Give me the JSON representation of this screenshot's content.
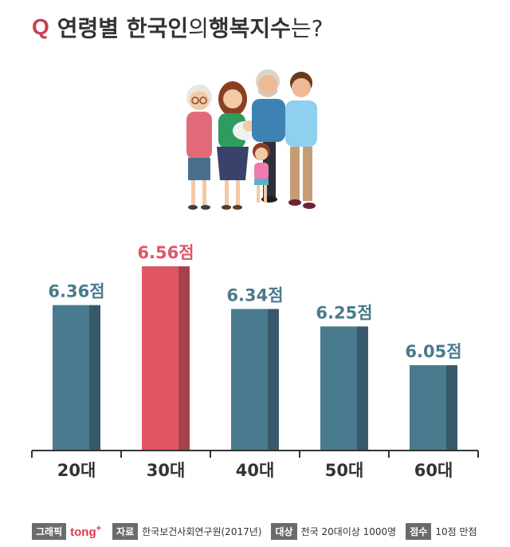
{
  "header": {
    "q": "Q",
    "title_bold_1": "연령별 한국인",
    "title_light": "의 ",
    "title_bold_2": "행복지수",
    "title_light_2": "는?"
  },
  "chart_data": {
    "type": "bar",
    "categories": [
      "20대",
      "30대",
      "40대",
      "50대",
      "60대"
    ],
    "values": [
      6.36,
      6.56,
      6.34,
      6.25,
      6.05
    ],
    "value_labels": [
      "6.36점",
      "6.56점",
      "6.34점",
      "6.25점",
      "6.05점"
    ],
    "highlight_index": 1,
    "colors": {
      "default": "#4a7a8e",
      "default_shade": "#38596a",
      "highlight": "#e15665",
      "highlight_shade": "#a8414d",
      "label_default": "#4a7a8e",
      "label_highlight": "#e15665",
      "axis": "#333333"
    },
    "title": "",
    "xlabel": "",
    "ylabel": ""
  },
  "footer": {
    "graphic_tag": "그래픽",
    "brand": "tong",
    "brand_sup": "+",
    "source_tag": "자료",
    "source": "한국보건사회연구원(2017년)",
    "target_tag": "대상",
    "target": "전국 20대이상 1000명",
    "score_tag": "점수",
    "score": "10점 만점"
  },
  "illustration": {
    "icon": "family-illustration"
  }
}
